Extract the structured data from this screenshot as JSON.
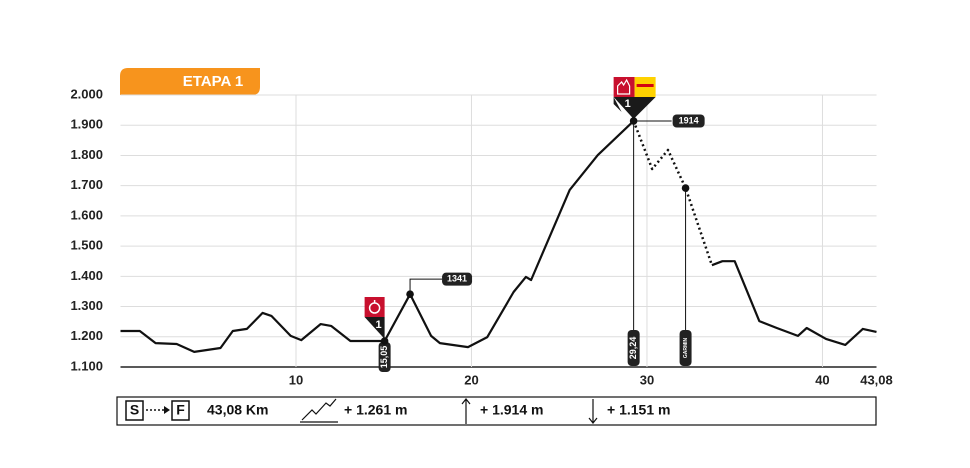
{
  "chart_data": {
    "type": "line",
    "title": "ETAPA 1",
    "x": [
      0,
      1.1,
      2.0,
      3.2,
      4.2,
      5.7,
      6.4,
      7.2,
      8.1,
      8.6,
      9.7,
      10.3,
      11.4,
      12.0,
      13.1,
      15.05,
      16.5,
      17.7,
      18.2,
      19.8,
      20.9,
      22.4,
      23.1,
      23.4,
      25.6,
      27.2,
      29.24,
      30.3,
      31.2,
      32.2,
      33.7,
      34.3,
      35.0,
      36.4,
      37.4,
      38.6,
      39.1,
      40.2,
      41.3,
      42.3,
      43.08
    ],
    "series": [
      {
        "color": "#111111",
        "style": "solid",
        "values": [
          1219,
          1219,
          1179,
          1176,
          1150,
          1163,
          1219,
          1226,
          1279,
          1269,
          1203,
          1189,
          1242,
          1236,
          1186,
          1186,
          1341,
          1203,
          1179,
          1166,
          1199,
          1348,
          1398,
          1388,
          1686,
          1801,
          1914,
          null,
          null,
          null,
          1437,
          1450,
          1450,
          1252,
          1229,
          1203,
          1229,
          1193,
          1173,
          1226,
          1216
        ]
      },
      {
        "color": "#111111",
        "style": "dotted",
        "values": [
          null,
          null,
          null,
          null,
          null,
          null,
          null,
          null,
          null,
          null,
          null,
          null,
          null,
          null,
          null,
          null,
          null,
          null,
          null,
          null,
          null,
          null,
          null,
          null,
          null,
          null,
          1914,
          1755,
          1818,
          1692,
          1437,
          null,
          null,
          null,
          null,
          null,
          null,
          null,
          null,
          null,
          null
        ]
      }
    ],
    "xlim": [
      0,
      43.08
    ],
    "ylim": [
      1100,
      2000
    ],
    "xticks": [
      10,
      20,
      30,
      40,
      {
        "value": 43.08,
        "label": "43,08"
      }
    ],
    "yticks": [
      {
        "value": 1100,
        "label": "1.100"
      },
      {
        "value": 1200,
        "label": "1.200"
      },
      {
        "value": 1300,
        "label": "1.300"
      },
      {
        "value": 1400,
        "label": "1.400"
      },
      {
        "value": 1500,
        "label": "1.500"
      },
      {
        "value": 1600,
        "label": "1.600"
      },
      {
        "value": 1700,
        "label": "1.700"
      },
      {
        "value": 1800,
        "label": "1.800"
      },
      {
        "value": 1900,
        "label": "1.900"
      },
      {
        "value": 2000,
        "label": "2.000"
      }
    ],
    "grid": true,
    "annotations": [
      {
        "kind": "sprint",
        "x": 15.05,
        "y": 1186,
        "text": "15,05",
        "rank": "1"
      },
      {
        "kind": "peak",
        "x": 16.5,
        "y": 1341,
        "text": "1341"
      },
      {
        "kind": "summit",
        "x": 29.24,
        "y": 1914,
        "text": "29,24",
        "rank": "1",
        "elevation": "1914"
      },
      {
        "kind": "point",
        "x": 32.2,
        "y": 1692,
        "text": "GARMIN"
      }
    ]
  },
  "footer": {
    "start": "S",
    "finish": "F",
    "distance": "43,08 Km",
    "gain": "+ 1.261 m",
    "max": "+ 1.914 m",
    "loss": "+ 1.151 m"
  }
}
